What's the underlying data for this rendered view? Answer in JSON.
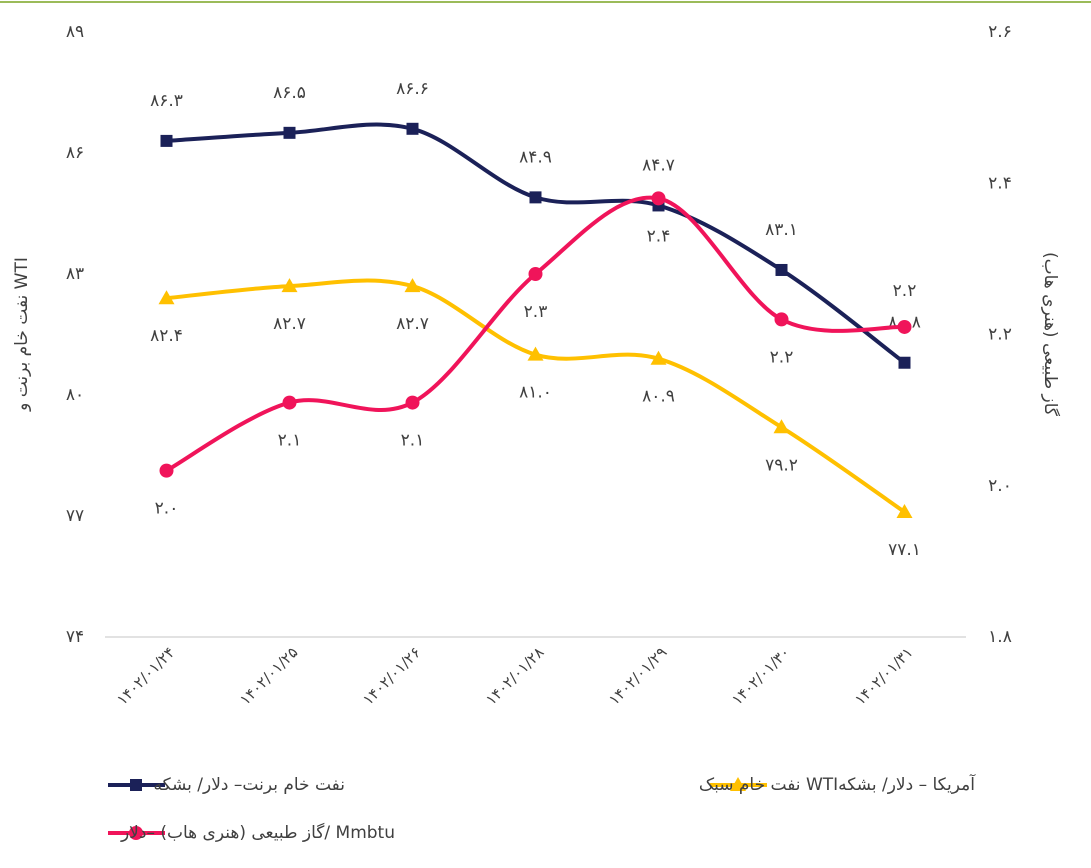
{
  "chart_data": {
    "type": "line",
    "categories": [
      "۱۴۰۲/۰۱/۲۴",
      "۱۴۰۲/۰۱/۲۵",
      "۱۴۰۲/۰۱/۲۶",
      "۱۴۰۲/۰۱/۲۸",
      "۱۴۰۲/۰۱/۲۹",
      "۱۴۰۲/۰۱/۳۰",
      "۱۴۰۲/۰۱/۳۱"
    ],
    "ylabel": "نفت خام برنت و WTI",
    "y2label": "گاز طبیعی (هنری هاب)",
    "ylim": [
      74,
      89
    ],
    "yticks": [
      {
        "value": 74,
        "label": "۷۴"
      },
      {
        "value": 77,
        "label": "۷۷"
      },
      {
        "value": 80,
        "label": "۸۰"
      },
      {
        "value": 83,
        "label": "۸۳"
      },
      {
        "value": 86,
        "label": "۸۶"
      },
      {
        "value": 89,
        "label": "۸۹"
      }
    ],
    "y2lim": [
      1.8,
      2.6
    ],
    "y2ticks": [
      {
        "value": 1.8,
        "label": "۱.۸"
      },
      {
        "value": 2.0,
        "label": "۲.۰"
      },
      {
        "value": 2.2,
        "label": "۲.۲"
      },
      {
        "value": 2.4,
        "label": "۲.۴"
      },
      {
        "value": 2.6,
        "label": "۲.۶"
      }
    ],
    "series": [
      {
        "name": "نفت خام برنت– دلار/ بشکه",
        "color": "#1b2158",
        "marker": "square",
        "values": [
          86.3,
          86.5,
          86.6,
          84.9,
          84.7,
          83.1,
          80.8
        ],
        "value_labels": [
          "۸۶.۳",
          "۸۶.۵",
          "۸۶.۶",
          "۸۴.۹",
          "۸۴.۷",
          "۸۳.۱",
          "۸۰.۸"
        ]
      },
      {
        "name": "نفت خام سبک WTIآمریکا – دلار/ بشکه",
        "color": "#ffc000",
        "marker": "triangle",
        "values": [
          82.4,
          82.7,
          82.7,
          81.0,
          80.9,
          79.2,
          77.1
        ],
        "value_labels": [
          "۸۲.۴",
          "۸۲.۷",
          "۸۲.۷",
          "۸۱.۰",
          "۸۰.۹",
          "۷۹.۲",
          "۷۷.۱"
        ]
      },
      {
        "name": "گاز طبیعی (هنری هاب) –دلار/ Mmbtu",
        "color": "#f0145a",
        "marker": "circle",
        "axis": "y2",
        "values": [
          2.02,
          2.11,
          2.11,
          2.28,
          2.38,
          2.22,
          2.21
        ],
        "value_labels": [
          "۲.۰",
          "۲.۱",
          "۲.۱",
          "۲.۳",
          "۲.۴",
          "۲.۲",
          "۲.۲"
        ]
      }
    ]
  }
}
